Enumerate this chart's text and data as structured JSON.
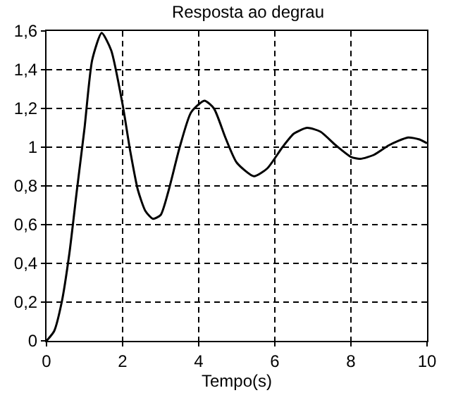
{
  "chart_data": {
    "type": "line",
    "title": "Resposta ao degrau",
    "xlabel": "Tempo(s)",
    "series": [
      {
        "color": "#000000",
        "x": [
          0,
          0.2,
          0.4,
          0.6,
          0.8,
          1.0,
          1.2,
          1.45,
          1.7,
          2.0,
          2.2,
          2.4,
          2.6,
          2.8,
          3.0,
          3.2,
          3.5,
          3.8,
          4.15,
          4.4,
          4.7,
          5.0,
          5.45,
          5.8,
          6.2,
          6.5,
          6.85,
          7.2,
          7.6,
          8.0,
          8.25,
          8.6,
          9.0,
          9.5,
          9.8,
          10
        ],
        "values": [
          0,
          0.05,
          0.2,
          0.45,
          0.78,
          1.1,
          1.45,
          1.59,
          1.5,
          1.22,
          0.98,
          0.78,
          0.67,
          0.63,
          0.65,
          0.77,
          1.0,
          1.18,
          1.24,
          1.2,
          1.05,
          0.92,
          0.85,
          0.89,
          1.0,
          1.07,
          1.1,
          1.08,
          1.01,
          0.95,
          0.94,
          0.96,
          1.01,
          1.05,
          1.04,
          1.02
        ]
      }
    ],
    "xlim": [
      0,
      10
    ],
    "xticks": [
      0,
      2,
      4,
      6,
      8,
      10
    ],
    "ylim": [
      0,
      1.6
    ],
    "yticks": [
      0,
      {
        "value": 0.2,
        "label": "0,2"
      },
      {
        "value": 0.4,
        "label": "0,4"
      },
      {
        "value": 0.6,
        "label": "0,6"
      },
      {
        "value": 0.8,
        "label": "0,8"
      },
      1,
      {
        "value": 1.2,
        "label": "1,2"
      },
      {
        "value": 1.4,
        "label": "1,4"
      },
      {
        "value": 1.6,
        "label": "1,6"
      }
    ],
    "grid": true,
    "marker": "none",
    "line_style": "solid"
  }
}
